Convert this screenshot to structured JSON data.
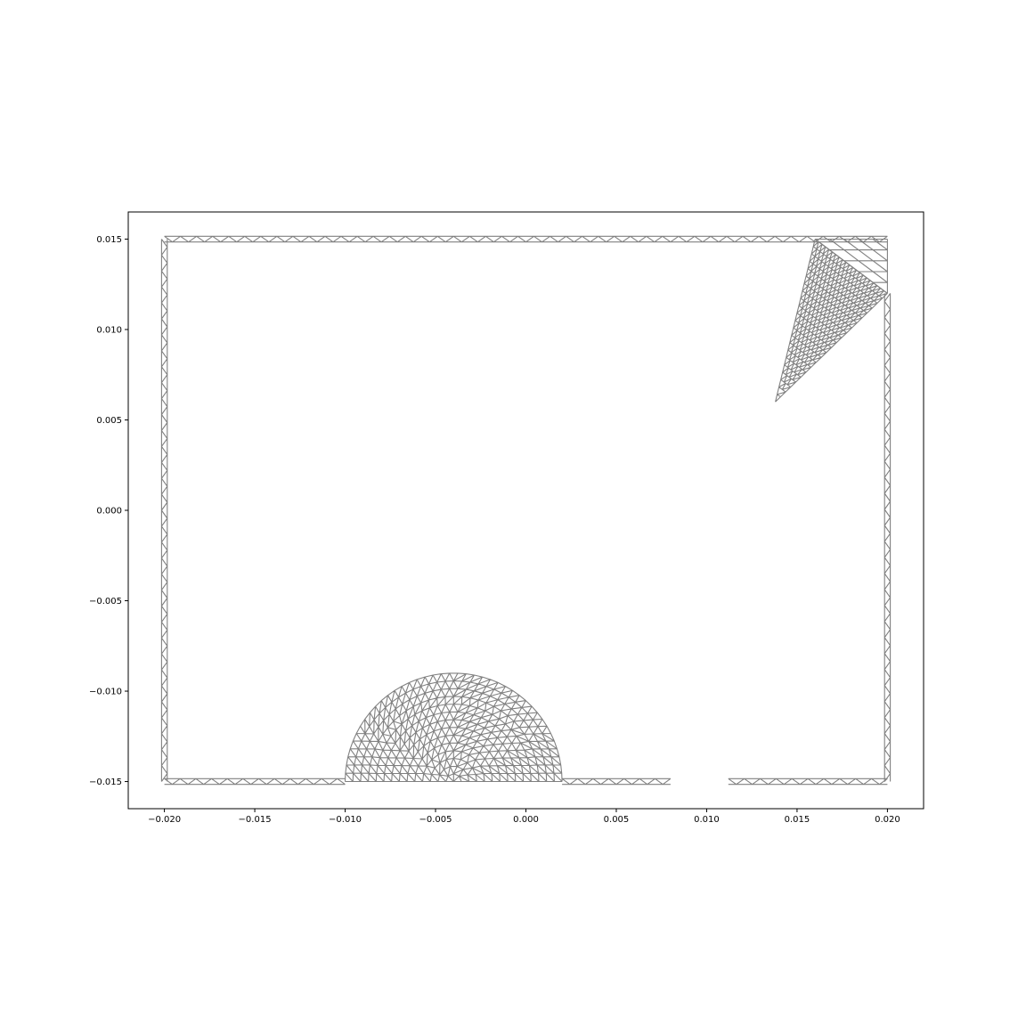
{
  "chart_data": {
    "type": "mesh",
    "title": "",
    "xlabel": "",
    "ylabel": "",
    "xlim": [
      -0.022,
      0.022
    ],
    "ylim": [
      -0.0165,
      0.0165
    ],
    "xticks": [
      -0.02,
      -0.015,
      -0.01,
      -0.005,
      0.0,
      0.005,
      0.01,
      0.015,
      0.02
    ],
    "xtick_labels": [
      "−0.020",
      "−0.015",
      "−0.010",
      "−0.005",
      "0.000",
      "0.005",
      "0.010",
      "0.015",
      "0.020"
    ],
    "yticks": [
      0.015,
      0.01,
      0.005,
      0.0,
      -0.005,
      -0.01,
      -0.015
    ],
    "ytick_labels": [
      "0.015",
      "0.010",
      "0.005",
      "0.000",
      "−0.005",
      "−0.010",
      "−0.015"
    ],
    "grid": false,
    "mesh_color": "#808080",
    "axes_color": "#000000",
    "background": "#ffffff",
    "boundary_strips": [
      {
        "name": "top-wall",
        "from": [
          -0.02,
          0.015
        ],
        "to": [
          0.02,
          0.015
        ]
      },
      {
        "name": "left-wall",
        "from": [
          -0.02,
          -0.015
        ],
        "to": [
          -0.02,
          0.015
        ]
      },
      {
        "name": "right-wall",
        "from": [
          0.02,
          -0.015
        ],
        "to": [
          0.02,
          0.012
        ]
      },
      {
        "name": "bottom-wall-left",
        "from": [
          -0.02,
          -0.015
        ],
        "to": [
          -0.01,
          -0.015
        ]
      },
      {
        "name": "bottom-wall-middle",
        "from": [
          0.002,
          -0.015
        ],
        "to": [
          0.008,
          -0.015
        ]
      },
      {
        "name": "bottom-wall-right",
        "from": [
          0.0112,
          -0.015
        ],
        "to": [
          0.02,
          -0.015
        ]
      }
    ],
    "semicircle": {
      "center": [
        -0.004,
        -0.015
      ],
      "radius": 0.006
    },
    "wedge": {
      "vertices": [
        [
          0.016,
          0.015
        ],
        [
          0.02,
          0.012
        ],
        [
          0.0138,
          0.006
        ]
      ]
    },
    "corner_block": {
      "vertices": [
        [
          0.016,
          0.015
        ],
        [
          0.02,
          0.015
        ],
        [
          0.02,
          0.012
        ]
      ]
    }
  }
}
